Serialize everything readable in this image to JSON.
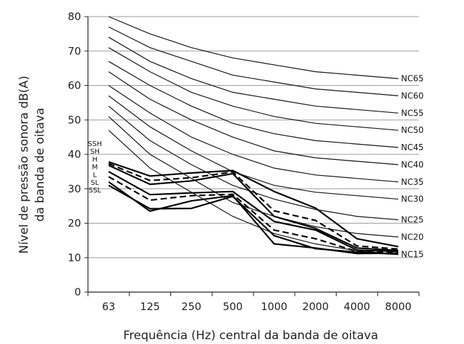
{
  "chart_data": {
    "type": "line",
    "xlabel": "Frequência (Hz) central da banda de oitava",
    "ylabel": "Nível de pressão sonora dB(A)",
    "ylabel_line2": "da banda de oitava",
    "categories": [
      "63",
      "125",
      "250",
      "500",
      "1000",
      "2000",
      "4000",
      "8000"
    ],
    "ylim": [
      0,
      80
    ],
    "yticks": [
      0,
      10,
      20,
      30,
      40,
      50,
      60,
      70,
      80
    ],
    "grid": "horizontal",
    "nc_curves": [
      {
        "name": "NC65",
        "values": [
          80,
          75,
          71,
          68,
          66,
          64,
          63,
          62
        ]
      },
      {
        "name": "NC60",
        "values": [
          77,
          71,
          67,
          63,
          61,
          59,
          58,
          57
        ]
      },
      {
        "name": "NC55",
        "values": [
          74,
          67,
          62,
          58,
          56,
          54,
          53,
          52
        ]
      },
      {
        "name": "NC50",
        "values": [
          71,
          64,
          58,
          54,
          51,
          49,
          48,
          47
        ]
      },
      {
        "name": "NC45",
        "values": [
          67,
          60,
          54,
          49,
          46,
          44,
          43,
          42
        ]
      },
      {
        "name": "NC40",
        "values": [
          64,
          56,
          50,
          45,
          41,
          39,
          38,
          37
        ]
      },
      {
        "name": "NC35",
        "values": [
          60,
          52,
          45,
          40,
          36,
          34,
          33,
          32
        ]
      },
      {
        "name": "NC30",
        "values": [
          57,
          48,
          41,
          35,
          31,
          29,
          28,
          27
        ]
      },
      {
        "name": "NC25",
        "values": [
          54,
          44,
          37,
          31,
          27,
          24,
          22,
          21
        ]
      },
      {
        "name": "NC20",
        "values": [
          51,
          40,
          33,
          26,
          22,
          19,
          17,
          16
        ]
      },
      {
        "name": "NC15",
        "values": [
          47,
          36,
          29,
          22,
          17,
          14,
          12,
          11
        ]
      }
    ],
    "series": [
      {
        "name": "SSH",
        "dashed": false,
        "values": [
          37.8,
          33.7,
          34.6,
          35.3,
          29.2,
          24.4,
          15.5,
          13.2
        ]
      },
      {
        "name": "SH",
        "dashed": true,
        "values": [
          37.3,
          32.4,
          33.2,
          34.9,
          23.6,
          20.8,
          13.4,
          12.5
        ]
      },
      {
        "name": "H",
        "dashed": false,
        "values": [
          36.8,
          31.3,
          32.3,
          34.4,
          22.0,
          18.5,
          12.8,
          12.1
        ]
      },
      {
        "name": "M",
        "dashed": false,
        "values": [
          35.0,
          28.3,
          28.8,
          29.2,
          20.5,
          18.0,
          12.2,
          11.8
        ]
      },
      {
        "name": "L",
        "dashed": true,
        "values": [
          33.5,
          26.7,
          28.0,
          28.4,
          18.0,
          15.5,
          11.8,
          11.5
        ]
      },
      {
        "name": "SL",
        "dashed": false,
        "values": [
          32.0,
          23.5,
          26.5,
          28.0,
          14.0,
          12.8,
          11.2,
          11.3
        ]
      },
      {
        "name": "SSL",
        "dashed": false,
        "values": [
          31.0,
          24.2,
          24.3,
          27.8,
          16.4,
          12.6,
          11.6,
          11.0
        ]
      }
    ],
    "series_labels": [
      "SSH",
      "SH",
      "H",
      "M",
      "L",
      "SL",
      "SSL"
    ]
  }
}
